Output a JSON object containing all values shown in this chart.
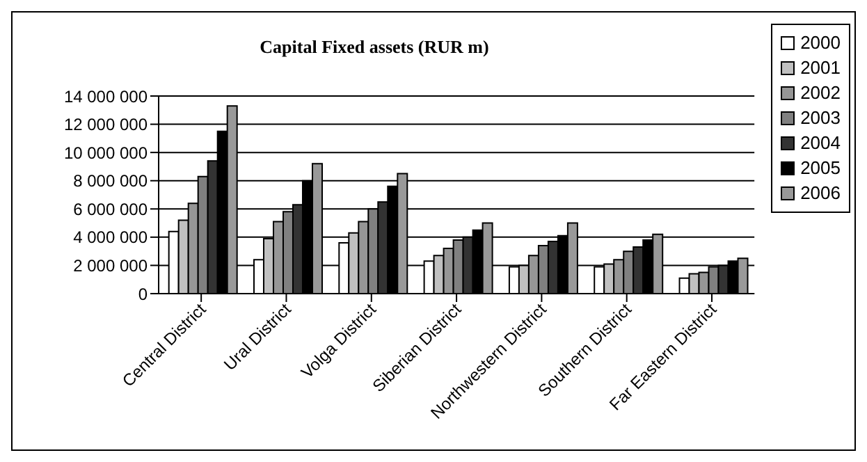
{
  "chart_data": {
    "type": "bar",
    "title": "Capital Fixed assets (RUR m)",
    "categories": [
      "Central District",
      "Ural District",
      "Volga District",
      "Siberian District",
      "Northwestern District",
      "Southern District",
      "Far Eastern District"
    ],
    "series": [
      {
        "name": "2000",
        "color": "#ffffff",
        "values": [
          4400000,
          2400000,
          3600000,
          2300000,
          1900000,
          1900000,
          1100000
        ]
      },
      {
        "name": "2001",
        "color": "#c0c0c0",
        "values": [
          5200000,
          3900000,
          4300000,
          2700000,
          2000000,
          2100000,
          1400000
        ]
      },
      {
        "name": "2002",
        "color": "#969696",
        "values": [
          6400000,
          5100000,
          5100000,
          3200000,
          2700000,
          2400000,
          1500000
        ]
      },
      {
        "name": "2003",
        "color": "#808080",
        "values": [
          8300000,
          5800000,
          6000000,
          3800000,
          3400000,
          3000000,
          1900000
        ]
      },
      {
        "name": "2004",
        "color": "#333333",
        "values": [
          9400000,
          6300000,
          6500000,
          4000000,
          3700000,
          3300000,
          2000000
        ]
      },
      {
        "name": "2005",
        "color": "#000000",
        "values": [
          11500000,
          8000000,
          7600000,
          4500000,
          4100000,
          3800000,
          2300000
        ]
      },
      {
        "name": "2006",
        "color": "#999999",
        "values": [
          13300000,
          9200000,
          8500000,
          5000000,
          5000000,
          4200000,
          2500000
        ]
      }
    ],
    "ylim": [
      0,
      14000000
    ],
    "yticks": [
      {
        "value": 0,
        "label": "0"
      },
      {
        "value": 2000000,
        "label": "2 000 000"
      },
      {
        "value": 4000000,
        "label": "4 000 000"
      },
      {
        "value": 6000000,
        "label": "6 000 000"
      },
      {
        "value": 8000000,
        "label": "8 000 000"
      },
      {
        "value": 10000000,
        "label": "10 000 000"
      },
      {
        "value": 12000000,
        "label": "12 000 000"
      },
      {
        "value": 14000000,
        "label": "14 000 000"
      }
    ],
    "grid": "y",
    "legend": "right"
  }
}
